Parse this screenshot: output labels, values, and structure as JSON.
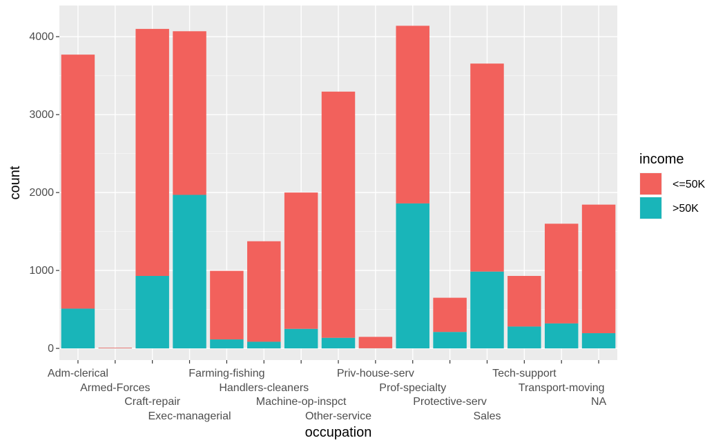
{
  "chart_data": {
    "type": "bar",
    "stacked": true,
    "title": "",
    "xlabel": "occupation",
    "ylabel": "count",
    "ylim": [
      -150,
      4400
    ],
    "yticks": [
      0,
      1000,
      2000,
      3000,
      4000
    ],
    "grid": true,
    "legend": {
      "title": "income",
      "placement": "right"
    },
    "categories": [
      "Adm-clerical",
      "Armed-Forces",
      "Craft-repair",
      "Exec-managerial",
      "Farming-fishing",
      "Handlers-cleaners",
      "Machine-op-inspct",
      "Other-service",
      "Priv-house-serv",
      "Prof-specialty",
      "Protective-serv",
      "Sales",
      "Tech-support",
      "Transport-moving",
      "NA"
    ],
    "series": [
      {
        "name": ">50K",
        "color": "#19b5b9",
        "values": [
          510,
          1,
          930,
          1970,
          115,
          85,
          250,
          135,
          1,
          1860,
          210,
          985,
          280,
          320,
          195
        ]
      },
      {
        "name": "<=50K",
        "color": "#f2615c",
        "values": [
          3260,
          8,
          3170,
          2100,
          880,
          1290,
          1750,
          3160,
          147,
          2280,
          440,
          2670,
          650,
          1280,
          1650
        ]
      }
    ],
    "legend_order": [
      "<=50K",
      ">50K"
    ]
  }
}
